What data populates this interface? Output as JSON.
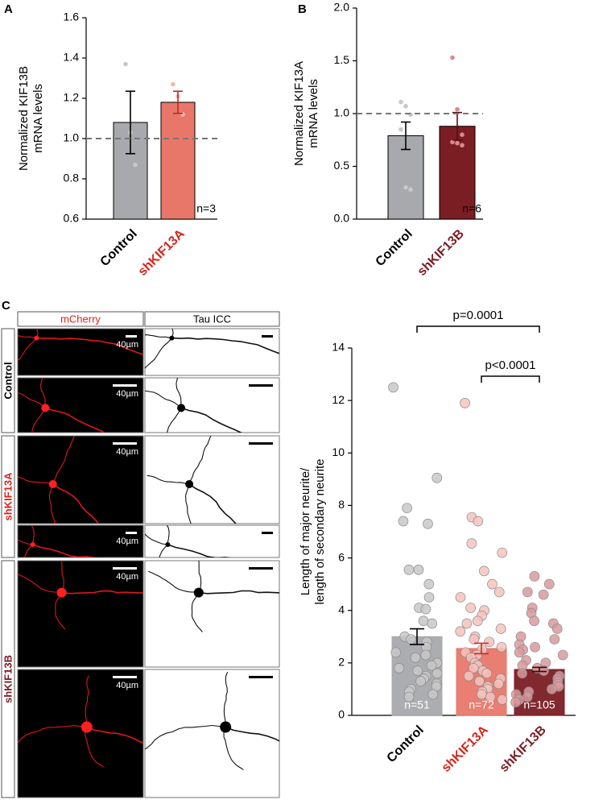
{
  "chart_data": [
    {
      "panel": "A",
      "type": "bar",
      "ylabel": [
        "Normalized KIF13B",
        "mRNA levels"
      ],
      "categories": [
        "Control",
        "shKIF13A"
      ],
      "values": [
        1.08,
        1.18
      ],
      "errors": [
        0.155,
        0.055
      ],
      "points": [
        [
          1.37,
          1.03,
          0.87
        ],
        [
          1.27,
          1.21,
          1.12
        ]
      ],
      "bar_colors": [
        "#a7a9ac",
        "#e8776a"
      ],
      "error_colors": [
        "#000000",
        "#c0281e"
      ],
      "point_colors": [
        "#c8c8c8",
        "#f2b8b0"
      ],
      "label_colors": [
        "#000000",
        "#d7261e"
      ],
      "reference_line": 1.0,
      "n_label": "n=3",
      "ylim": [
        0.6,
        1.6
      ],
      "yticks": [
        0.6,
        0.8,
        {
          "value": 1.0,
          "label": "1.0"
        },
        1.2,
        1.4,
        1.6
      ]
    },
    {
      "panel": "B",
      "type": "bar",
      "ylabel": [
        "Normalized KIF13A",
        "mRNA levels"
      ],
      "categories": [
        "Control",
        "shKIF13B"
      ],
      "values": [
        0.79,
        0.88
      ],
      "errors": [
        0.13,
        0.13
      ],
      "points": [
        [
          1.11,
          1.07,
          0.99,
          0.85,
          0.3,
          0.28
        ],
        [
          1.53,
          1.04,
          0.8,
          0.73,
          0.72,
          0.7
        ]
      ],
      "bar_colors": [
        "#a7a9ac",
        "#7b1e24"
      ],
      "error_colors": [
        "#000000",
        "#5a0f13"
      ],
      "point_colors": [
        "#c8c8c8",
        "#d98a8e"
      ],
      "label_colors": [
        "#000000",
        "#7b1e24"
      ],
      "reference_line": 1.0,
      "n_label": "n=6",
      "ylim": [
        0,
        2
      ],
      "yticks": [
        {
          "value": 0,
          "label": "0.0"
        },
        0.5,
        {
          "value": 1,
          "label": "1.0"
        },
        1.5,
        {
          "value": 2,
          "label": "2.0"
        }
      ]
    },
    {
      "panel": "C",
      "type": "bar",
      "ylabel": [
        "Length of major neurite/",
        "length of secondary neurite"
      ],
      "categories": [
        "Control",
        "shKIF13A",
        "shKIF13B"
      ],
      "values": [
        3.0,
        2.55,
        1.75
      ],
      "errors": [
        0.3,
        0.2,
        0.08
      ],
      "points": [
        [
          12.5,
          9.05,
          7.9,
          7.4,
          7.3,
          5.55,
          5.55,
          5.0,
          4.5,
          4.1,
          4.05,
          3.6,
          3.5,
          3.0,
          2.9,
          2.8,
          2.6,
          2.4,
          2.3,
          2.2,
          2.0,
          1.9,
          1.8,
          1.7,
          1.6,
          1.5,
          1.4,
          1.3,
          1.2,
          1.1,
          1.0,
          0.9,
          0.8,
          0.7
        ],
        [
          11.9,
          7.55,
          7.4,
          6.55,
          6.2,
          5.5,
          5.0,
          4.7,
          4.5,
          4.1,
          4.0,
          3.8,
          3.6,
          3.5,
          3.3,
          3.2,
          3.0,
          2.9,
          2.8,
          2.6,
          2.5,
          2.4,
          2.3,
          2.2,
          2.0,
          1.9,
          1.8,
          1.7,
          1.6,
          1.5,
          1.4,
          1.3,
          1.2,
          1.1,
          1.0,
          0.9,
          0.8,
          0.7,
          0.6
        ],
        [
          5.3,
          5.0,
          4.7,
          4.6,
          4.1,
          3.9,
          3.6,
          3.5,
          3.3,
          3.0,
          2.9,
          2.7,
          2.6,
          2.5,
          2.4,
          2.3,
          2.1,
          2.0,
          1.9,
          1.8,
          1.7,
          1.6,
          1.5,
          1.4,
          1.3,
          1.2,
          1.1,
          1.0,
          0.9,
          0.8,
          0.7,
          0.6,
          0.5
        ]
      ],
      "bar_colors": [
        "#a7a9ac",
        "#e8776a",
        "#7b1e24"
      ],
      "error_colors": [
        "#000000",
        "#d7261e",
        "#3a0508"
      ],
      "point_colors": [
        "#c8c8c8",
        "#f6c3bd",
        "#d99a9d"
      ],
      "label_colors": [
        "#000000",
        "#d7261e",
        "#7b1e24"
      ],
      "n_labels": [
        "n=51",
        "n=72",
        "n=105"
      ],
      "annotations": [
        {
          "text": "p=0.0001",
          "between": [
            0,
            2
          ]
        },
        {
          "text": "p<0.0001",
          "between": [
            1,
            2
          ]
        }
      ],
      "ylim": [
        0,
        14
      ],
      "yticks": [
        0,
        2,
        4,
        6,
        8,
        10,
        12,
        14
      ]
    }
  ],
  "images": {
    "panel": "C",
    "columns": [
      "mCherry",
      "Tau ICC"
    ],
    "column_colors": [
      "#d7261e",
      "#000000"
    ],
    "groups": [
      "Control",
      "shKIF13A",
      "shKIF13B"
    ],
    "group_colors": [
      "#000000",
      "#d7261e",
      "#7b1e24"
    ],
    "scale_bar": "40µm"
  }
}
